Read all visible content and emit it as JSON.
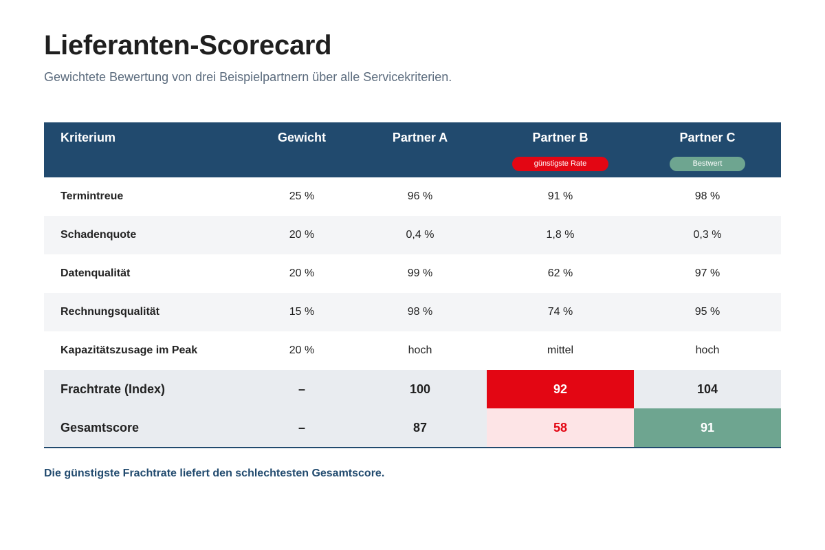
{
  "header": {
    "title": "Lieferanten-Scorecard",
    "subtitle": "Gewichtete Bewertung von drei Beispielpartnern über alle Servicekriterien."
  },
  "table": {
    "columns": [
      "Kriterium",
      "Gewicht",
      "Partner A",
      "Partner B",
      "Partner C"
    ],
    "badges": {
      "partner_b": "günstigste Rate",
      "partner_c": "Bestwert"
    },
    "rows": [
      [
        "Termintreue",
        "25 %",
        "96 %",
        "91 %",
        "98 %"
      ],
      [
        "Schadenquote",
        "20 %",
        "0,4 %",
        "1,8 %",
        "0,3 %"
      ],
      [
        "Datenqualität",
        "20 %",
        "99 %",
        "62 %",
        "97 %"
      ],
      [
        "Rechnungsqualität",
        "15 %",
        "98 %",
        "74 %",
        "95 %"
      ],
      [
        "Kapazitätszusage im Peak",
        "20 %",
        "hoch",
        "mittel",
        "hoch"
      ]
    ],
    "summary_rows": [
      [
        "Frachtrate (Index)",
        "–",
        "100",
        "92",
        "104"
      ],
      [
        "Gesamtscore",
        "–",
        "87",
        "58",
        "91"
      ]
    ]
  },
  "footer": {
    "note": "Die günstigste Frachtrate liefert den schlechtesten Gesamtscore."
  },
  "colors": {
    "header_bg": "#214a6e",
    "highlight_red": "#e30613",
    "highlight_pink": "#fde4e6",
    "highlight_green": "#6ea590"
  }
}
